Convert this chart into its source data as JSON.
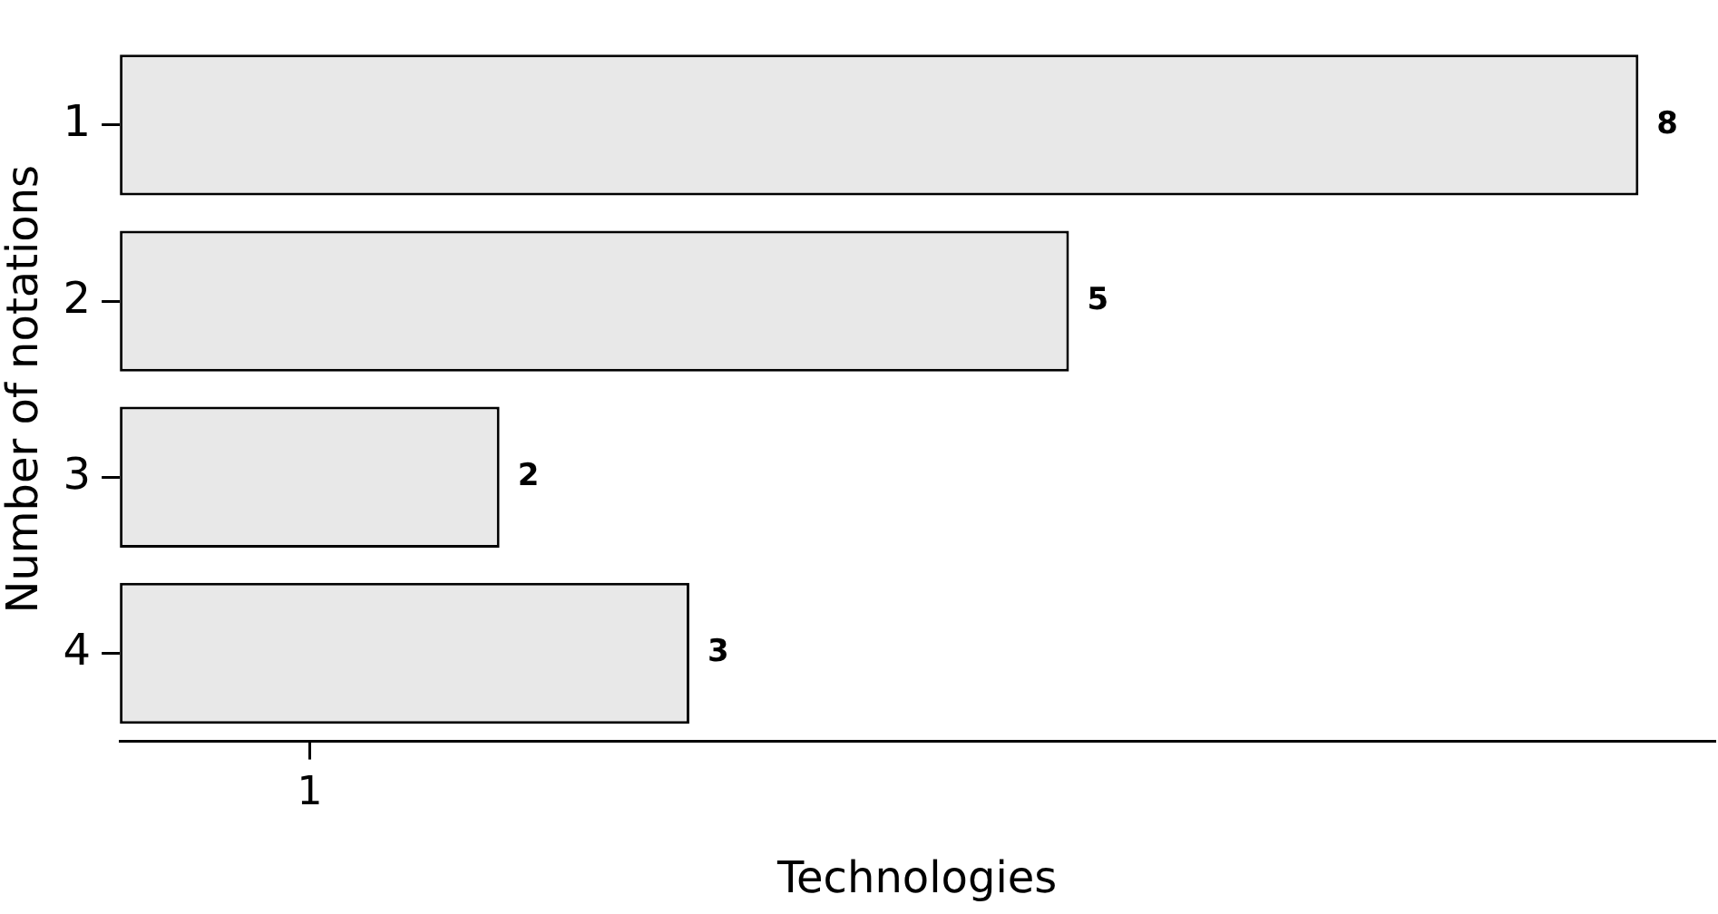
{
  "chart_data": {
    "type": "bar",
    "orientation": "horizontal",
    "categories": [
      "1",
      "2",
      "3",
      "4"
    ],
    "values": [
      8,
      5,
      2,
      3
    ],
    "color": "#e8e8e8",
    "xlim": [
      0,
      8.4
    ],
    "xticks": [
      1
    ],
    "xlabel": "Technologies",
    "ylabel": "Number of notations",
    "data_labels": true
  }
}
